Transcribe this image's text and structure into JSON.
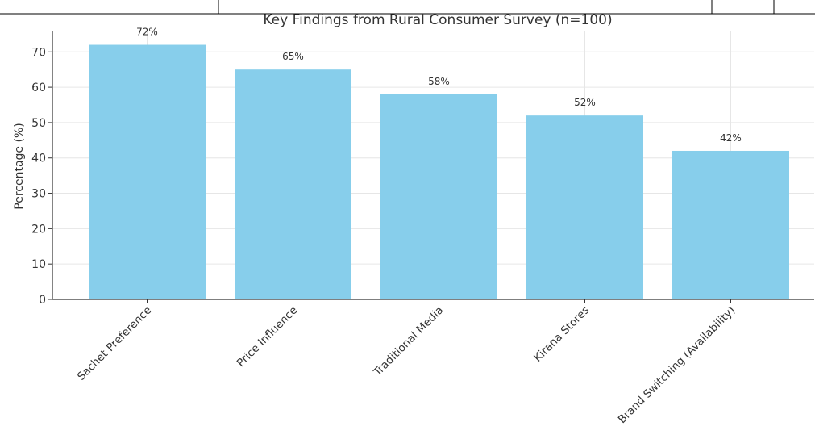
{
  "chart_data": {
    "type": "bar",
    "title": "Key Findings from Rural Consumer Survey (n=100)",
    "xlabel": "",
    "ylabel": "Percentage (%)",
    "categories": [
      "Sachet Preference",
      "Price Influence",
      "Traditional Media",
      "Kirana Stores",
      "Brand Switching (Availability)"
    ],
    "values": [
      72,
      65,
      58,
      52,
      42
    ],
    "value_labels": [
      "72%",
      "65%",
      "58%",
      "52%",
      "42%"
    ],
    "ylim": [
      0,
      76
    ],
    "yticks": [
      0,
      10,
      20,
      30,
      40,
      50,
      60,
      70
    ],
    "grid": true,
    "bar_color": "#87CEEB"
  }
}
